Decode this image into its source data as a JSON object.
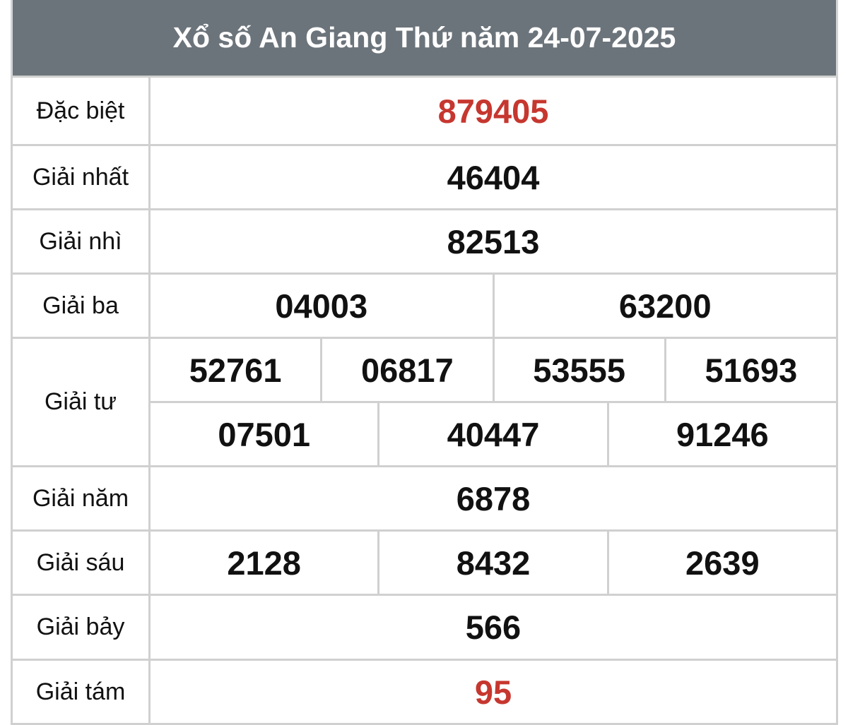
{
  "title": "Xổ số An Giang Thứ năm 24-07-2025",
  "colors": {
    "header_bg": "#6c747b",
    "highlight": "#c6372f"
  },
  "prizes": [
    {
      "label": "Đặc biệt",
      "rows": [
        [
          "879405"
        ]
      ],
      "highlight": true
    },
    {
      "label": "Giải nhất",
      "rows": [
        [
          "46404"
        ]
      ]
    },
    {
      "label": "Giải nhì",
      "rows": [
        [
          "82513"
        ]
      ]
    },
    {
      "label": "Giải ba",
      "rows": [
        [
          "04003",
          "63200"
        ]
      ]
    },
    {
      "label": "Giải tư",
      "rows": [
        [
          "52761",
          "06817",
          "53555",
          "51693"
        ],
        [
          "07501",
          "40447",
          "91246"
        ]
      ]
    },
    {
      "label": "Giải năm",
      "rows": [
        [
          "6878"
        ]
      ]
    },
    {
      "label": "Giải sáu",
      "rows": [
        [
          "2128",
          "8432",
          "2639"
        ]
      ]
    },
    {
      "label": "Giải bảy",
      "rows": [
        [
          "566"
        ]
      ]
    },
    {
      "label": "Giải tám",
      "rows": [
        [
          "95"
        ]
      ],
      "highlight": true
    }
  ]
}
